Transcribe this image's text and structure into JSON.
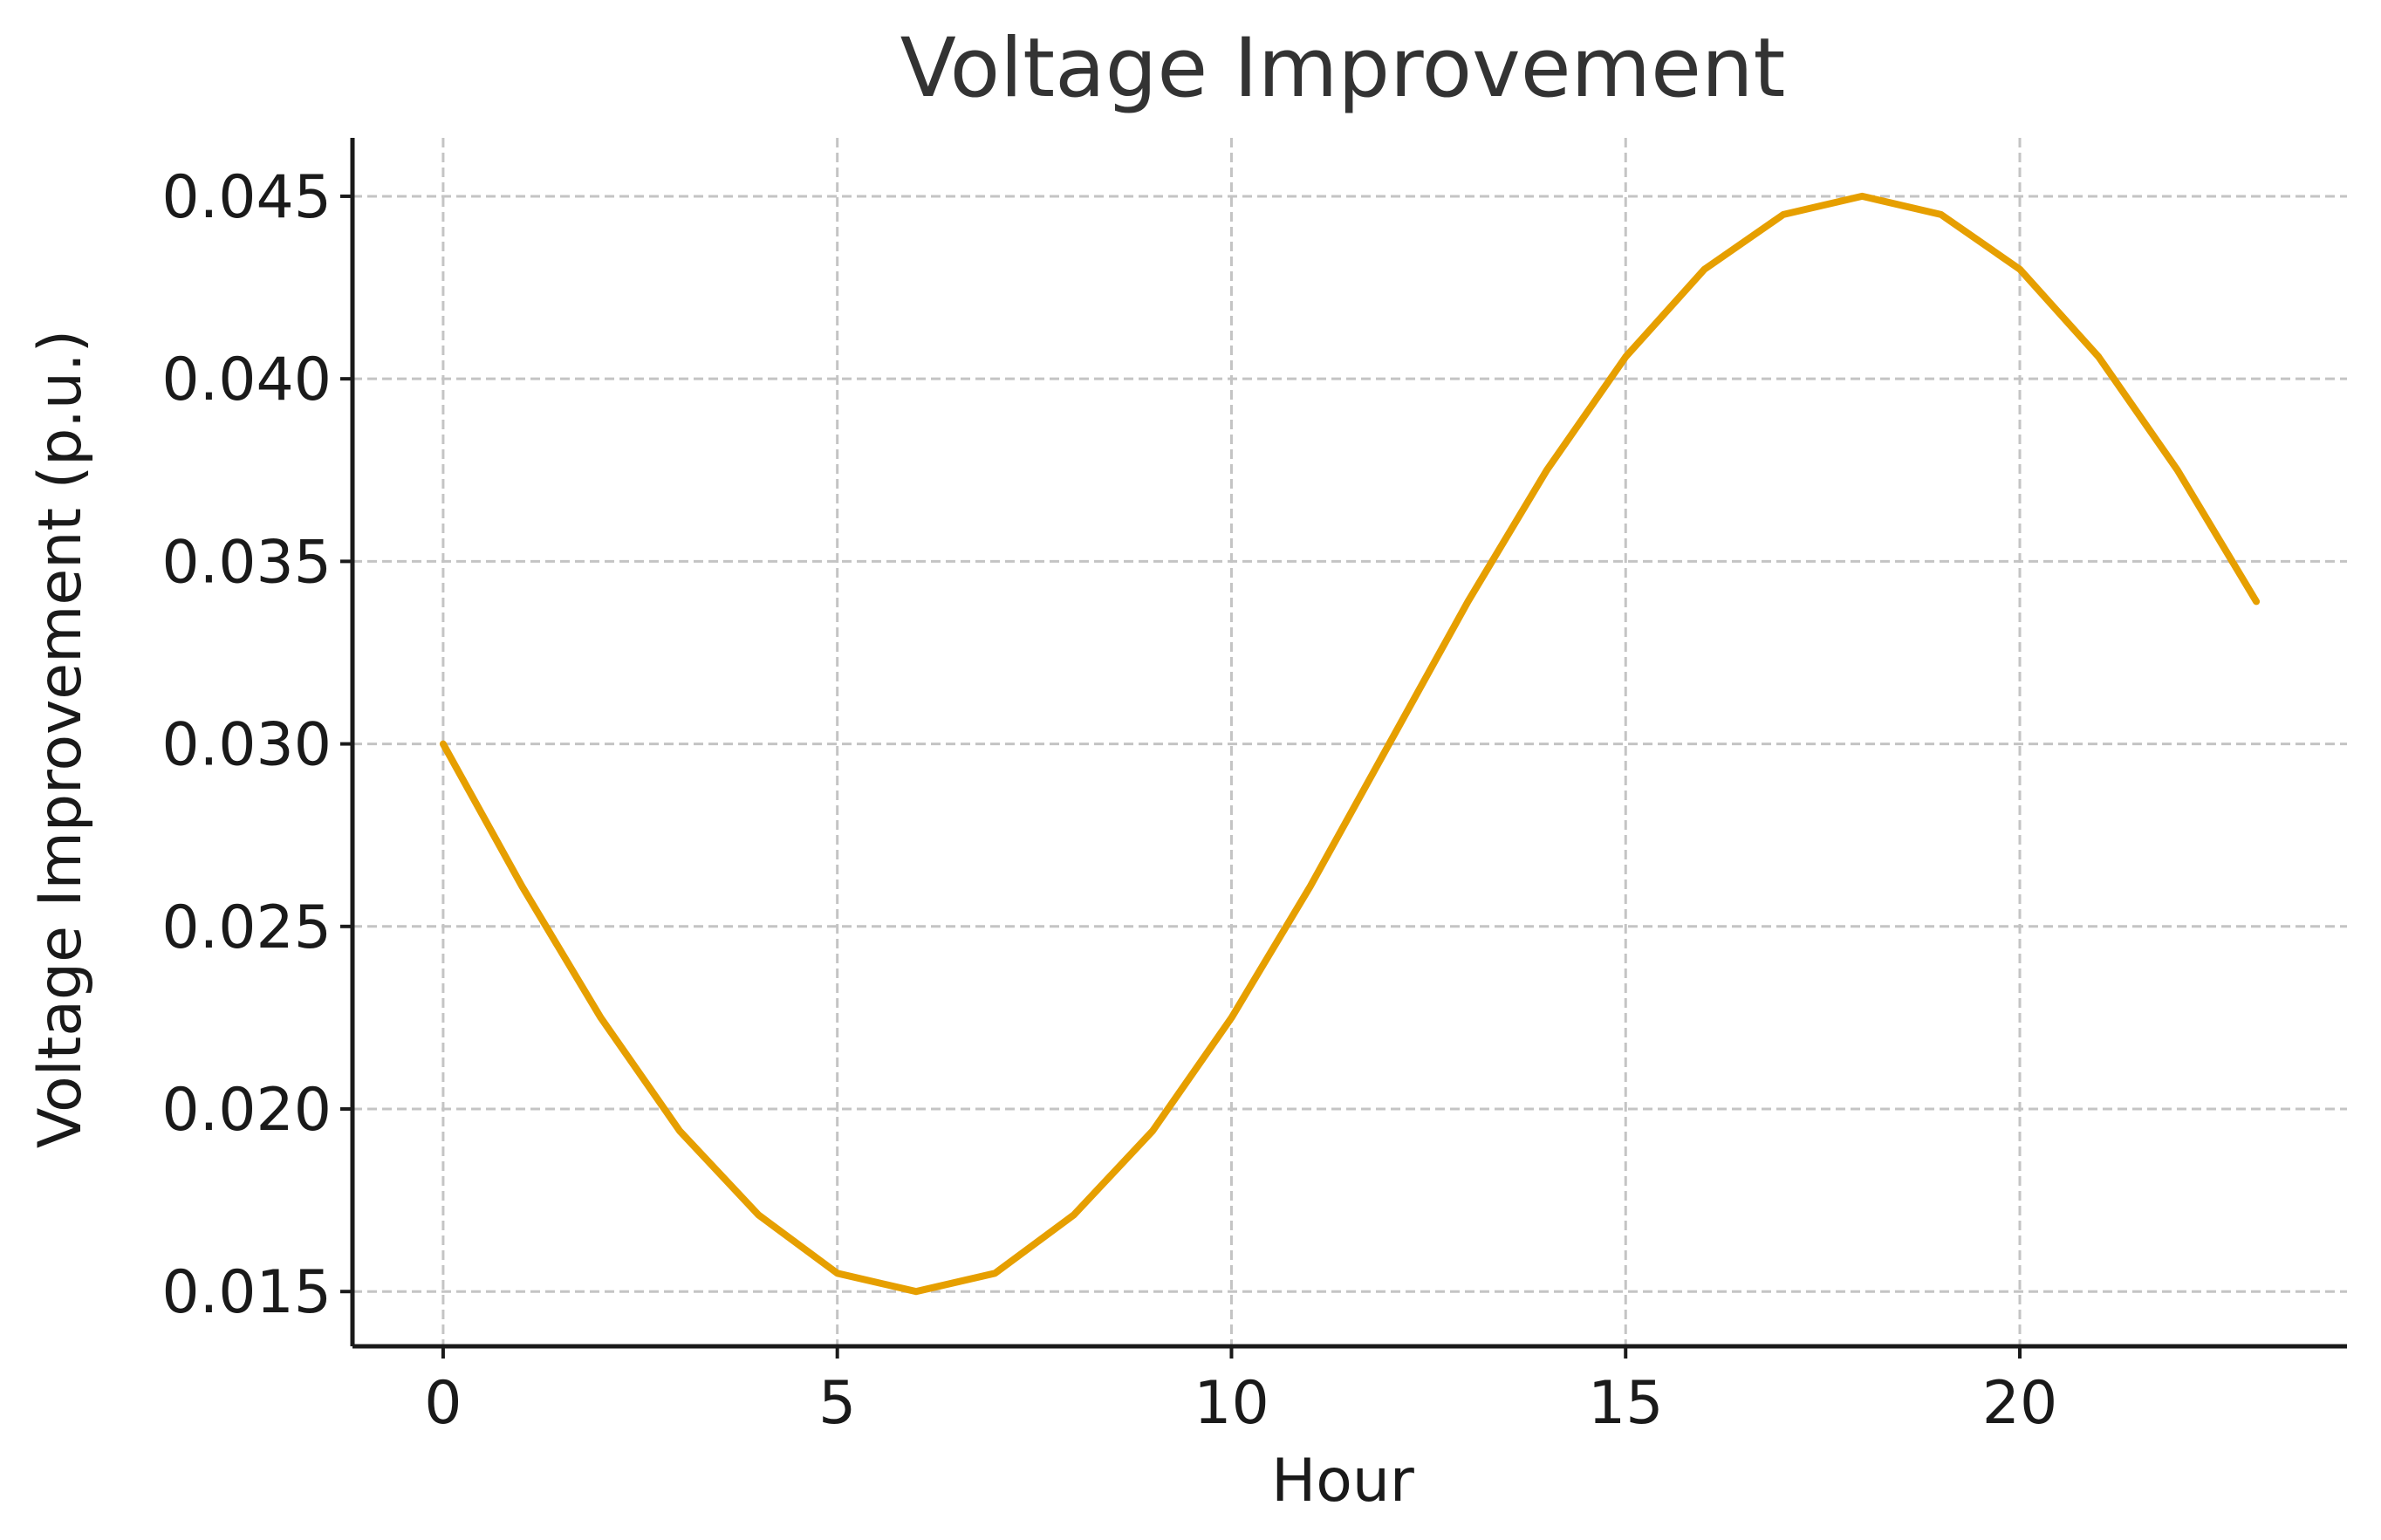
{
  "chart_data": {
    "type": "line",
    "title": "Voltage Improvement",
    "xlabel": "Hour",
    "ylabel": "Voltage Improvement (p.u.)",
    "xlim": [
      -1.15,
      24.15
    ],
    "ylim": [
      0.0135,
      0.0466
    ],
    "x_ticks": [
      0,
      5,
      10,
      15,
      20
    ],
    "x_tick_labels": [
      "0",
      "5",
      "10",
      "15",
      "20"
    ],
    "y_ticks": [
      0.015,
      0.02,
      0.025,
      0.03,
      0.035,
      0.04,
      0.045
    ],
    "y_tick_labels": [
      "0.015",
      "0.020",
      "0.025",
      "0.030",
      "0.035",
      "0.040",
      "0.045"
    ],
    "grid": true,
    "legend": "none",
    "series": [
      {
        "color": "#E69F00",
        "x": [
          0,
          1,
          2,
          3,
          4,
          5,
          6,
          7,
          8,
          9,
          10,
          11,
          12,
          13,
          14,
          15,
          16,
          17,
          18,
          19,
          20,
          21,
          22,
          23
        ],
        "y": [
          0.03,
          0.0261,
          0.0225,
          0.0194,
          0.0171,
          0.0155,
          0.015,
          0.0155,
          0.0171,
          0.0194,
          0.0225,
          0.0261,
          0.03,
          0.0339,
          0.0375,
          0.0406,
          0.043,
          0.0445,
          0.045,
          0.0445,
          0.043,
          0.0406,
          0.0375,
          0.0339
        ]
      }
    ]
  }
}
